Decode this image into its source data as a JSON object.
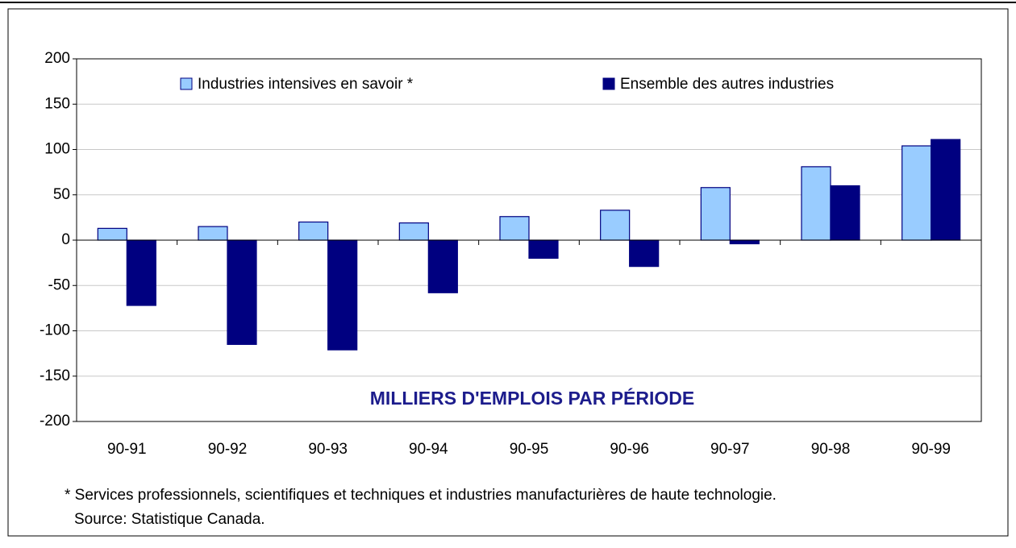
{
  "chart_data": {
    "type": "bar",
    "annotation": "MILLIERS D'EMPLOIS PAR PÉRIODE",
    "categories": [
      "90-91",
      "90-92",
      "90-93",
      "90-94",
      "90-95",
      "90-96",
      "90-97",
      "90-98",
      "90-99"
    ],
    "series": [
      {
        "name": "Industries intensives en savoir *",
        "color": "#99ccff",
        "values": [
          13,
          15,
          20,
          19,
          26,
          33,
          58,
          81,
          104
        ]
      },
      {
        "name": "Ensemble des autres industries",
        "color": "#000080",
        "values": [
          -72,
          -115,
          -121,
          -58,
          -20,
          -29,
          -4,
          60,
          111
        ]
      }
    ],
    "ylim": [
      -200,
      200
    ],
    "yticks": [
      -200,
      -150,
      -100,
      -50,
      0,
      50,
      100,
      150,
      200
    ],
    "grid": true,
    "notes": [
      "* Services professionnels, scientifiques et techniques et industries manufacturières de haute technologie.",
      "Source: Statistique Canada."
    ]
  }
}
